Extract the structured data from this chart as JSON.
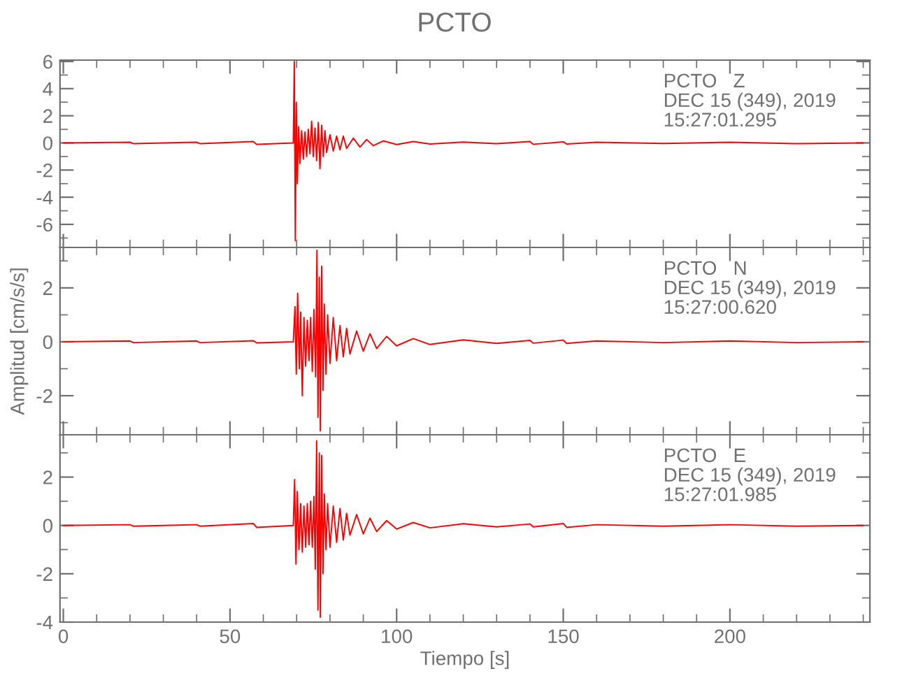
{
  "chart_data": [
    {
      "type": "line",
      "title": "PCTO",
      "annotations": [
        "PCTO   Z\nDEC 15 (349), 2019\n15:27:01.295"
      ],
      "xlim": [
        -1,
        242
      ],
      "xticks": [
        0,
        50,
        100,
        150,
        200
      ],
      "ylim": [
        -7.7,
        6.1
      ],
      "yticks": [
        -6,
        -4,
        -2,
        0,
        2,
        4,
        6
      ],
      "tick_labels": "y",
      "grid": false,
      "marker": "none",
      "line_style": "solid",
      "series": [
        {
          "color": "#ff0000",
          "x": [
            0,
            20,
            21,
            40,
            41,
            57,
            58,
            69,
            69.3,
            69.6,
            69.9,
            70.2,
            70.6,
            71,
            71.5,
            72,
            72.5,
            73,
            73.5,
            74,
            74.5,
            75,
            75.5,
            76,
            76.5,
            77,
            77.5,
            78,
            78.5,
            79,
            80,
            81,
            82,
            83,
            84,
            85,
            87,
            89,
            91,
            93,
            96,
            100,
            105,
            110,
            120,
            130,
            140,
            141,
            150,
            151,
            160,
            180,
            200,
            220,
            240
          ],
          "values": [
            0,
            0.05,
            -0.05,
            0.05,
            -0.05,
            0.1,
            -0.1,
            0,
            6,
            -7.2,
            3,
            -3,
            1.2,
            -1.5,
            0.9,
            -1.2,
            0.8,
            -1,
            1,
            -0.8,
            1.6,
            -1,
            1.1,
            -1.3,
            1.5,
            -1.9,
            1.3,
            -1,
            0.9,
            -0.7,
            0.6,
            -0.6,
            0.5,
            -0.5,
            0.5,
            -0.4,
            0.35,
            -0.3,
            0.25,
            -0.2,
            0.15,
            -0.12,
            0.1,
            -0.08,
            0.06,
            -0.05,
            0.1,
            -0.1,
            0.08,
            -0.08,
            0.05,
            -0.04,
            0.05,
            -0.05,
            0
          ]
        }
      ]
    },
    {
      "type": "line",
      "ylabel": "Amplitud [cm/s/s]",
      "annotations": [
        "PCTO   N\nDEC 15 (349), 2019\n15:27:00.620"
      ],
      "xlim": [
        -1,
        242
      ],
      "xticks": [
        0,
        50,
        100,
        150,
        200
      ],
      "ylim": [
        -3.45,
        3.5
      ],
      "yticks": [
        -2,
        0,
        2
      ],
      "tick_labels": "y",
      "grid": false,
      "marker": "none",
      "line_style": "solid",
      "series": [
        {
          "color": "#ff0000",
          "x": [
            0,
            20,
            21,
            40,
            41,
            57,
            58,
            69,
            69.5,
            69.9,
            70.3,
            70.8,
            71.2,
            71.7,
            72.2,
            72.7,
            73.2,
            73.7,
            74.2,
            74.7,
            75.2,
            75.7,
            76.1,
            76.4,
            76.8,
            77.1,
            77.5,
            77.9,
            78.3,
            78.8,
            79.3,
            80,
            81,
            82,
            83,
            84,
            85,
            86,
            88,
            90,
            92,
            94,
            97,
            100,
            105,
            110,
            120,
            130,
            140,
            141,
            150,
            151,
            160,
            180,
            200,
            220,
            240
          ],
          "values": [
            0,
            0.03,
            -0.03,
            0.03,
            -0.03,
            0.04,
            -0.04,
            0,
            1.3,
            -1.2,
            1.8,
            -1.0,
            1.1,
            -2.0,
            0.9,
            -0.9,
            0.8,
            -0.7,
            0.9,
            -1.1,
            1.2,
            -1.3,
            3.4,
            -2.8,
            2.4,
            -3.3,
            2.8,
            -1.8,
            1.4,
            -1.2,
            1.0,
            -0.8,
            0.9,
            -0.7,
            0.6,
            -0.55,
            0.5,
            -0.45,
            0.4,
            -0.35,
            0.3,
            -0.25,
            0.2,
            -0.15,
            0.12,
            -0.1,
            0.07,
            -0.06,
            0.05,
            -0.05,
            0.06,
            -0.06,
            0.03,
            -0.03,
            0.03,
            -0.03,
            0
          ]
        }
      ]
    },
    {
      "type": "line",
      "xlabel": "Tiempo [s]",
      "annotations": [
        "PCTO   E\nDEC 15 (349), 2019\n15:27:01.985"
      ],
      "xlim": [
        -1,
        242
      ],
      "xticks": [
        0,
        50,
        100,
        150,
        200
      ],
      "ylim": [
        -4,
        3.75
      ],
      "yticks": [
        -4,
        -2,
        0,
        2
      ],
      "grid": false,
      "marker": "none",
      "line_style": "solid",
      "series": [
        {
          "color": "#ff0000",
          "x": [
            0,
            20,
            21,
            40,
            41,
            57,
            58,
            69,
            69.4,
            69.8,
            70.2,
            70.7,
            71.2,
            71.7,
            72.2,
            72.7,
            73.2,
            73.7,
            74.2,
            74.7,
            75.2,
            75.6,
            76,
            76.4,
            76.8,
            77.1,
            77.5,
            77.9,
            78.3,
            78.8,
            79.3,
            80,
            81,
            82,
            83,
            84,
            85,
            86,
            88,
            90,
            92,
            94,
            97,
            100,
            105,
            110,
            120,
            130,
            140,
            141,
            150,
            151,
            160,
            180,
            200,
            220,
            240
          ],
          "values": [
            0,
            0.03,
            -0.03,
            0.03,
            -0.03,
            0.08,
            -0.08,
            0,
            1.9,
            -1.6,
            1.4,
            -1.0,
            0.9,
            -1.1,
            0.8,
            -0.9,
            0.9,
            -0.8,
            1.0,
            -0.9,
            1.2,
            -1.8,
            3.5,
            -3.5,
            3.0,
            -3.8,
            2.9,
            -2.0,
            1.3,
            -1.0,
            0.9,
            -0.9,
            0.8,
            -0.7,
            0.7,
            -0.6,
            0.5,
            -0.4,
            0.45,
            -0.35,
            0.3,
            -0.25,
            0.2,
            -0.15,
            0.12,
            -0.1,
            0.07,
            -0.06,
            0.06,
            -0.06,
            0.08,
            -0.08,
            0.03,
            -0.03,
            0.03,
            -0.03,
            0
          ]
        }
      ]
    }
  ]
}
